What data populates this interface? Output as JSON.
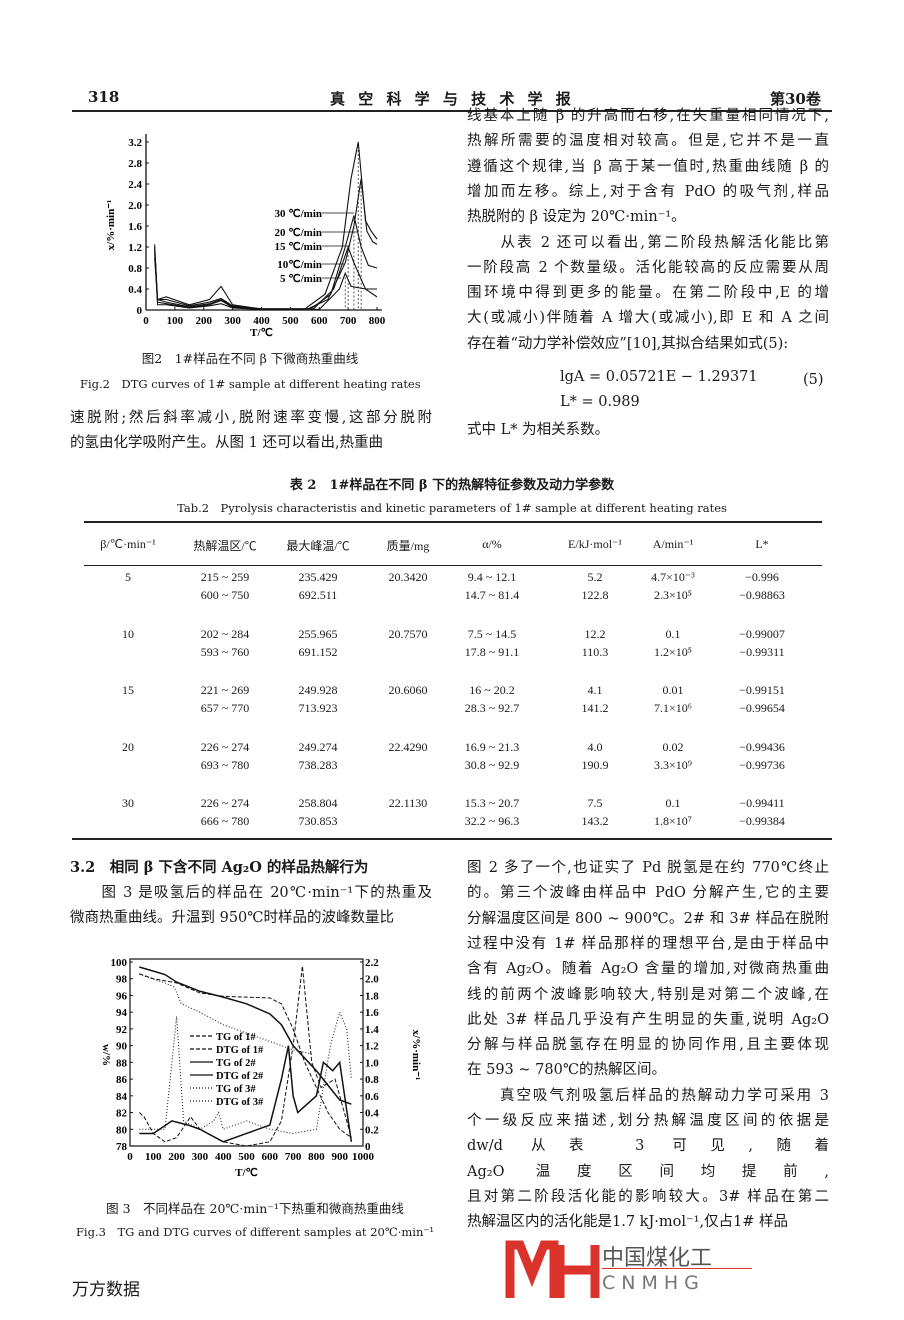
{
  "header": {
    "page_number": "318",
    "journal": "真 空 科 学 与 技 术 学 报",
    "volume": "第30卷"
  },
  "fig2": {
    "caption_cn": "图2　1#样品在不同 β 下微商热重曲线",
    "caption_en": "Fig.2　DTG curves of 1# sample at different heating rates"
  },
  "left_top_lines": [
    "速脱附;然后斜率减小,脱附速率变慢,这部分脱附",
    "的氢由化学吸附产生。从图 1 还可以看出,热重曲"
  ],
  "right_top_lines": [
    "线基本上随 β 的升高而右移,在失重量相同情况下,",
    "热解所需要的温度相对较高。但是,它并不是一直",
    "遵循这个规律,当 β 高于某一值时,热重曲线随 β 的",
    "增加而左移。综上,对于含有 PdO 的吸气剂,样品",
    "热脱附的 β 设定为 20℃·min⁻¹。",
    "　　从表 2 还可以看出,第二阶段热解活化能比第",
    "一阶段高 2 个数量级。活化能较高的反应需要从周",
    "围环境中得到更多的能量。在第二阶段中,E 的增",
    "大(或减小)伴随着 A 增大(或减小),即 E 和 A 之间",
    "存在着“动力学补偿效应”[10],其拟合结果如式(5):"
  ],
  "equation": {
    "line1": "lgA = 0.05721E − 1.29371",
    "number": "(5)",
    "line2": "L* = 0.989",
    "note": "式中 L* 为相关系数。"
  },
  "table": {
    "title_cn": "表 2　1#样品在不同 β 下的热解特征参数及动力学参数",
    "title_en": "Tab.2　Pyrolysis characteristis and kinetic parameters of 1# sample at different heating rates",
    "columns": [
      "β/℃·min⁻¹",
      "热解温区/℃",
      "最大峰温/℃",
      "质量/mg",
      "α/%",
      "E/kJ·mol⁻¹",
      "A/min⁻¹",
      "L*"
    ],
    "rows": [
      {
        "beta": "5",
        "mass": "20.3420",
        "stages": [
          [
            "215 ~ 259",
            "235.429",
            "9.4 ~ 12.1",
            "5.2",
            "4.7×10⁻³",
            "−0.996"
          ],
          [
            "600 ~ 750",
            "692.511",
            "14.7 ~ 81.4",
            "122.8",
            "2.3×10⁵",
            "−0.98863"
          ]
        ]
      },
      {
        "beta": "10",
        "mass": "20.7570",
        "stages": [
          [
            "202 ~ 284",
            "255.965",
            "7.5 ~ 14.5",
            "12.2",
            "0.1",
            "−0.99007"
          ],
          [
            "593 ~ 760",
            "691.152",
            "17.8 ~ 91.1",
            "110.3",
            "1.2×10⁵",
            "−0.99311"
          ]
        ]
      },
      {
        "beta": "15",
        "mass": "20.6060",
        "stages": [
          [
            "221 ~ 269",
            "249.928",
            "16 ~ 20.2",
            "4.1",
            "0.01",
            "−0.99151"
          ],
          [
            "657 ~ 770",
            "713.923",
            "28.3 ~ 92.7",
            "141.2",
            "7.1×10⁶",
            "−0.99654"
          ]
        ]
      },
      {
        "beta": "20",
        "mass": "22.4290",
        "stages": [
          [
            "226 ~ 274",
            "249.274",
            "16.9 ~ 21.3",
            "4.0",
            "0.02",
            "−0.99436"
          ],
          [
            "693 ~ 780",
            "738.283",
            "30.8 ~ 92.9",
            "190.9",
            "3.3×10⁹",
            "−0.99736"
          ]
        ]
      },
      {
        "beta": "30",
        "mass": "22.1130",
        "stages": [
          [
            "226 ~ 274",
            "258.804",
            "15.3 ~ 20.7",
            "7.5",
            "0.1",
            "−0.99411"
          ],
          [
            "666 ~ 780",
            "730.853",
            "32.2 ~ 96.3",
            "143.2",
            "1.8×10⁷",
            "−0.99384"
          ]
        ]
      }
    ]
  },
  "section": {
    "heading": "3.2　相同 β 下含不同 Ag₂O 的样品热解行为",
    "lines": [
      "　　图 3 是吸氢后的样品在 20℃·min⁻¹下的热重及",
      "微商热重曲线。升温到 950℃时样品的波峰数量比"
    ]
  },
  "fig3": {
    "caption_cn": "图 3　不同样品在 20℃·min⁻¹下热重和微商热重曲线",
    "caption_en": "Fig.3　TG and DTG curves of different samples at 20℃·min⁻¹"
  },
  "right_bottom_lines": [
    "图 2 多了一个,也证实了 Pd 脱氢是在约 770℃终止",
    "的。第三个波峰由样品中 PdO 分解产生,它的主要",
    "分解温度区间是 800 ~ 900℃。2# 和 3# 样品在脱附",
    "过程中没有 1# 样品那样的理想平台,是由于样品中",
    "含有 Ag₂O。随着 Ag₂O 含量的增加,对微商热重曲",
    "线的前两个波峰影响较大,特别是对第二个波峰,在",
    "此处 3# 样品几乎没有产生明显的失重,说明 Ag₂O",
    "分解与样品脱氢存在明显的协同作用,且主要体现",
    "在 593 ~ 780℃的热解区间。",
    "　　真空吸气剂吸氢后样品的热解动力学可采用 3",
    "个一级反应来描述,划分热解温度区间的依据是",
    "dw/d                                         从表 3 可见,随着",
    "Ag₂O                                         温度区间均提前,",
    "且对第二阶段活化能的影响较大。3# 样品在第二",
    "热解温区内的活化能是1.7 kJ·mol⁻¹,仅占1# 样品"
  ],
  "watermark": {
    "cn": "中国煤化工",
    "en": "CNMHG",
    "color": "#d9332b"
  },
  "footer": "万方数据",
  "chart_data": [
    {
      "type": "line",
      "title": "",
      "xlabel": "T/℃",
      "ylabel": "x/%·min⁻¹",
      "xlim": [
        0,
        800
      ],
      "ylim": [
        0,
        3.2
      ],
      "xticks": [
        0,
        100,
        200,
        300,
        400,
        500,
        600,
        700,
        800
      ],
      "yticks": [
        0,
        0.4,
        0.8,
        1.2,
        1.6,
        2.0,
        2.4,
        2.8,
        3.2
      ],
      "series": [
        {
          "name": "30 ℃/min",
          "x": [
            30,
            40,
            70,
            150,
            220,
            260,
            300,
            400,
            550,
            620,
            680,
            710,
            735,
            760,
            780,
            800
          ],
          "y": [
            1.2,
            0.2,
            0.25,
            0.1,
            0.2,
            0.45,
            0.1,
            0.02,
            0.02,
            0.3,
            1.2,
            2.5,
            3.2,
            1.7,
            1.5,
            1.35
          ]
        },
        {
          "name": "20 ℃/min",
          "x": [
            30,
            40,
            70,
            150,
            220,
            260,
            300,
            400,
            560,
            630,
            690,
            720,
            745,
            765,
            785,
            800
          ],
          "y": [
            1.1,
            0.2,
            0.2,
            0.08,
            0.15,
            0.22,
            0.08,
            0.02,
            0.02,
            0.2,
            0.9,
            1.6,
            2.5,
            1.5,
            1.3,
            1.25
          ]
        },
        {
          "name": "15 ℃/min",
          "x": [
            30,
            40,
            70,
            150,
            220,
            260,
            300,
            400,
            570,
            640,
            690,
            720,
            745,
            770,
            800
          ],
          "y": [
            1.15,
            0.2,
            0.15,
            0.06,
            0.12,
            0.2,
            0.06,
            0.02,
            0.02,
            0.3,
            1.2,
            1.8,
            1.2,
            0.85,
            0.8
          ]
        },
        {
          "name": "10℃/min",
          "x": [
            30,
            40,
            70,
            150,
            220,
            260,
            300,
            400,
            580,
            650,
            700,
            720,
            760,
            800
          ],
          "y": [
            1.0,
            0.15,
            0.12,
            0.05,
            0.1,
            0.18,
            0.05,
            0.02,
            0.02,
            0.4,
            1.2,
            0.9,
            0.4,
            0.4
          ]
        },
        {
          "name": "5 ℃/min",
          "x": [
            30,
            40,
            70,
            150,
            220,
            260,
            300,
            400,
            600,
            670,
            690,
            710,
            760,
            800
          ],
          "y": [
            1.25,
            0.1,
            0.1,
            0.04,
            0.08,
            0.12,
            0.04,
            0.01,
            0.01,
            0.4,
            0.7,
            0.45,
            0.4,
            0.25
          ]
        }
      ]
    },
    {
      "type": "line",
      "title": "",
      "xlabel": "T/℃",
      "ylabel": "w/%",
      "y2label": "x/%·min⁻¹",
      "xlim": [
        0,
        1000
      ],
      "ylim": [
        78,
        100
      ],
      "y2lim": [
        0,
        2.2
      ],
      "xticks": [
        0,
        100,
        200,
        300,
        400,
        500,
        600,
        700,
        800,
        900,
        1000
      ],
      "yticks": [
        78,
        80,
        82,
        84,
        86,
        88,
        90,
        92,
        94,
        96,
        98,
        100
      ],
      "y2ticks": [
        0,
        0.2,
        0.4,
        0.6,
        0.8,
        1.0,
        1.2,
        1.4,
        1.6,
        1.8,
        2.0,
        2.2
      ],
      "legend": "center",
      "series": [
        {
          "name": "TG of 1#",
          "axis": "left",
          "style": "dashed",
          "x": [
            40,
            100,
            200,
            300,
            400,
            500,
            600,
            650,
            700,
            750,
            800,
            850,
            900,
            950
          ],
          "y": [
            98.6,
            98,
            97.5,
            96.3,
            95.9,
            95.8,
            95.7,
            95,
            92,
            88,
            85,
            82,
            80,
            79
          ]
        },
        {
          "name": "DTG of 1#",
          "axis": "right",
          "style": "dashed",
          "x": [
            40,
            60,
            100,
            150,
            200,
            260,
            300,
            400,
            500,
            600,
            650,
            700,
            740,
            780,
            820,
            880,
            950
          ],
          "y": [
            0.4,
            0.35,
            0.15,
            0.05,
            0.1,
            0.35,
            0.2,
            0.05,
            0.0,
            0.05,
            0.3,
            1.2,
            2.15,
            1.0,
            0.7,
            0.8,
            0.1
          ]
        },
        {
          "name": "TG of 2#",
          "axis": "left",
          "style": "solid",
          "x": [
            40,
            150,
            200,
            300,
            400,
            500,
            600,
            650,
            700,
            800,
            900,
            950
          ],
          "y": [
            99.4,
            98.5,
            97.6,
            96.5,
            95.8,
            95,
            93.8,
            92.5,
            90,
            87,
            83.5,
            83
          ]
        },
        {
          "name": "DTG of 2#",
          "axis": "right",
          "style": "solid",
          "x": [
            40,
            100,
            180,
            250,
            300,
            400,
            500,
            600,
            650,
            680,
            700,
            720,
            800,
            830,
            870,
            900,
            950
          ],
          "y": [
            0.15,
            0.15,
            0.3,
            0.25,
            0.2,
            0.05,
            0.15,
            0.25,
            0.8,
            1.2,
            0.6,
            0.4,
            0.6,
            1.0,
            0.9,
            1.0,
            0.05
          ]
        },
        {
          "name": "TG of 3#",
          "axis": "left",
          "style": "dotted",
          "x": [
            40,
            150,
            190,
            220,
            300,
            400,
            500,
            600,
            700,
            780
          ],
          "y": [
            98.5,
            97.5,
            97,
            95,
            94,
            92.5,
            91.5,
            90.5,
            89.5,
            89
          ]
        },
        {
          "name": "DTG of 3#",
          "axis": "right",
          "style": "dotted",
          "x": [
            40,
            150,
            180,
            200,
            230,
            300,
            360,
            380,
            400,
            500,
            600,
            700,
            800,
            860,
            900,
            930,
            950
          ],
          "y": [
            0.2,
            0.2,
            1.0,
            1.55,
            0.3,
            0.2,
            0.3,
            0.4,
            0.2,
            0.3,
            0.2,
            0.15,
            0.2,
            1.2,
            1.6,
            1.4,
            0.8
          ]
        }
      ]
    }
  ]
}
